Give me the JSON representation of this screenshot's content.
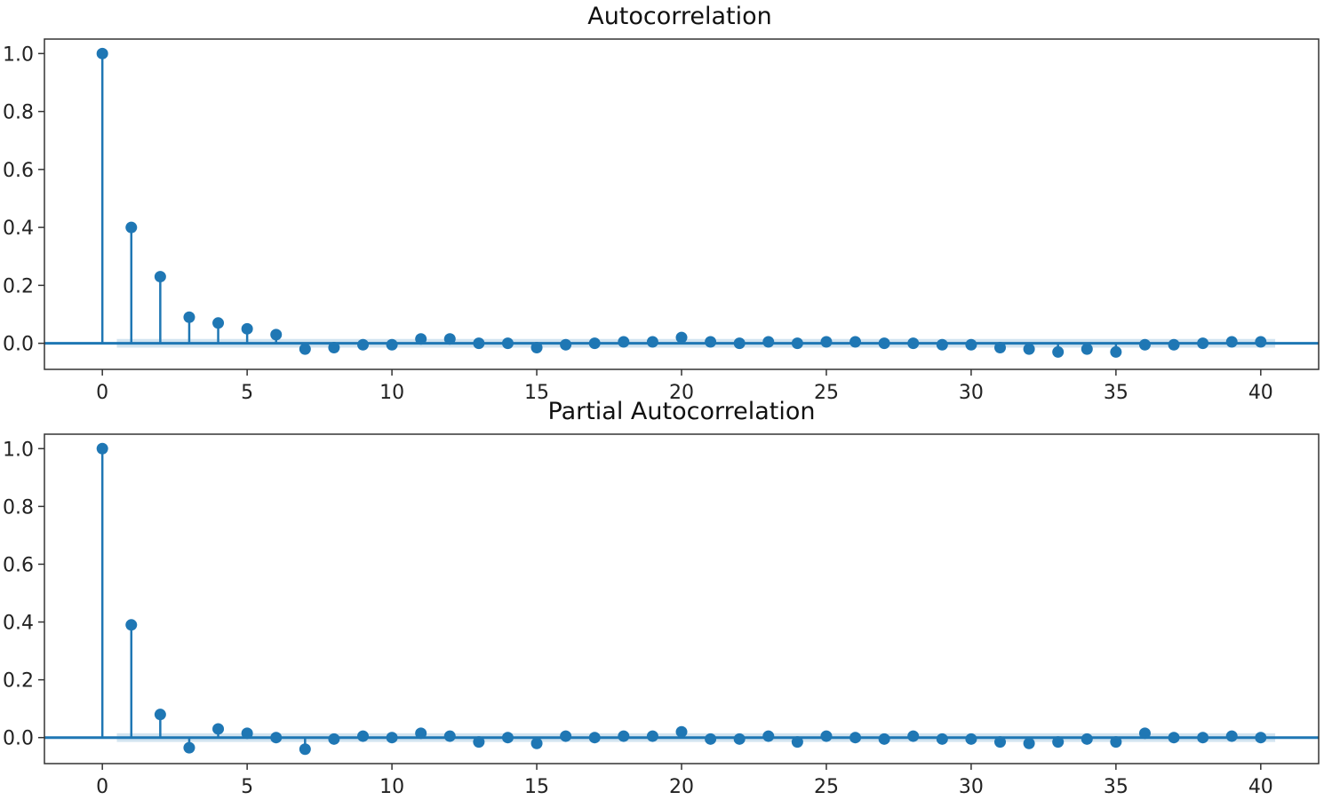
{
  "chart_data": [
    {
      "type": "stem",
      "title": "Autocorrelation",
      "xlabel": "",
      "ylabel": "",
      "xlim": [
        -2,
        42
      ],
      "ylim": [
        -0.09,
        1.05
      ],
      "xticks": [
        0,
        5,
        10,
        15,
        20,
        25,
        30,
        35,
        40
      ],
      "xtick_labels": [
        "0",
        "5",
        "10",
        "15",
        "20",
        "25",
        "30",
        "35",
        "40"
      ],
      "yticks": [
        0.0,
        0.2,
        0.4,
        0.6,
        0.8,
        1.0
      ],
      "ytick_labels": [
        "0.0",
        "0.2",
        "0.4",
        "0.6",
        "0.8",
        "1.0"
      ],
      "color": "#1f77b4",
      "confint_color": "#1f77b4",
      "confint": 0.015,
      "x": [
        0,
        1,
        2,
        3,
        4,
        5,
        6,
        7,
        8,
        9,
        10,
        11,
        12,
        13,
        14,
        15,
        16,
        17,
        18,
        19,
        20,
        21,
        22,
        23,
        24,
        25,
        26,
        27,
        28,
        29,
        30,
        31,
        32,
        33,
        34,
        35,
        36,
        37,
        38,
        39,
        40
      ],
      "values": [
        1.0,
        0.4,
        0.23,
        0.09,
        0.07,
        0.05,
        0.03,
        -0.02,
        -0.015,
        -0.005,
        -0.005,
        0.015,
        0.015,
        0.0,
        0.0,
        -0.015,
        -0.005,
        0.0,
        0.005,
        0.005,
        0.02,
        0.005,
        0.0,
        0.005,
        0.0,
        0.005,
        0.005,
        0.0,
        0.0,
        -0.005,
        -0.005,
        -0.015,
        -0.02,
        -0.03,
        -0.02,
        -0.03,
        -0.005,
        -0.005,
        0.0,
        0.005,
        0.005
      ]
    },
    {
      "type": "stem",
      "title": "Partial Autocorrelation",
      "xlabel": "",
      "ylabel": "",
      "xlim": [
        -2,
        42
      ],
      "ylim": [
        -0.09,
        1.05
      ],
      "xticks": [
        0,
        5,
        10,
        15,
        20,
        25,
        30,
        35,
        40
      ],
      "xtick_labels": [
        "0",
        "5",
        "10",
        "15",
        "20",
        "25",
        "30",
        "35",
        "40"
      ],
      "yticks": [
        0.0,
        0.2,
        0.4,
        0.6,
        0.8,
        1.0
      ],
      "ytick_labels": [
        "0.0",
        "0.2",
        "0.4",
        "0.6",
        "0.8",
        "1.0"
      ],
      "color": "#1f77b4",
      "confint_color": "#1f77b4",
      "confint": 0.015,
      "x": [
        0,
        1,
        2,
        3,
        4,
        5,
        6,
        7,
        8,
        9,
        10,
        11,
        12,
        13,
        14,
        15,
        16,
        17,
        18,
        19,
        20,
        21,
        22,
        23,
        24,
        25,
        26,
        27,
        28,
        29,
        30,
        31,
        32,
        33,
        34,
        35,
        36,
        37,
        38,
        39,
        40
      ],
      "values": [
        1.0,
        0.39,
        0.08,
        -0.035,
        0.03,
        0.015,
        0.0,
        -0.04,
        -0.005,
        0.005,
        0.0,
        0.015,
        0.005,
        -0.015,
        0.0,
        -0.02,
        0.005,
        0.0,
        0.005,
        0.005,
        0.02,
        -0.005,
        -0.005,
        0.005,
        -0.015,
        0.005,
        0.0,
        -0.005,
        0.005,
        -0.005,
        -0.005,
        -0.015,
        -0.02,
        -0.015,
        -0.005,
        -0.015,
        0.015,
        0.0,
        0.0,
        0.005,
        0.0
      ]
    }
  ]
}
